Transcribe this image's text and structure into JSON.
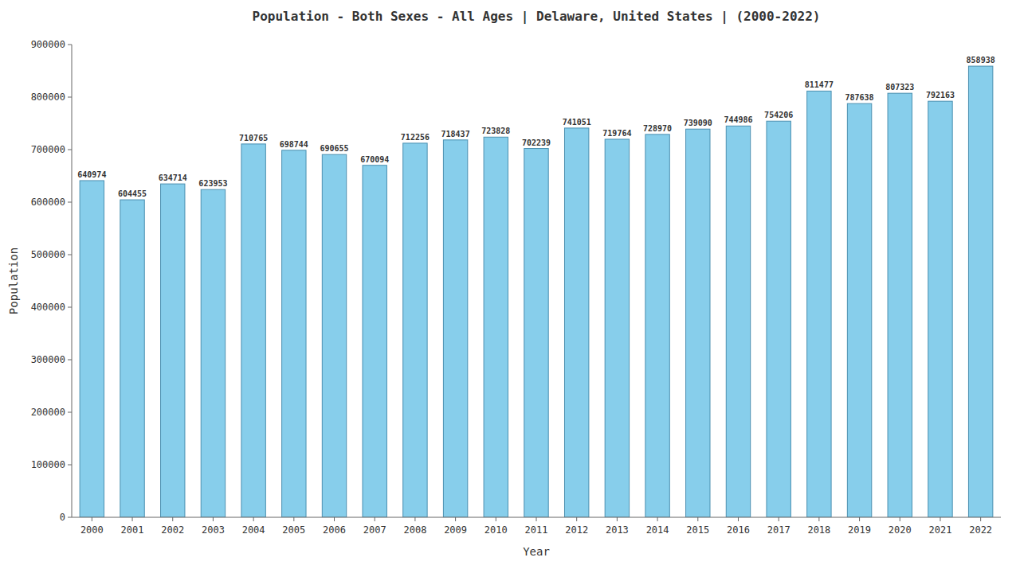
{
  "chart_data": {
    "type": "bar",
    "title": "Population - Both Sexes - All Ages | Delaware, United States |  (2000-2022)",
    "x_label": "Year",
    "y_label": "Population",
    "categories": [
      "2000",
      "2001",
      "2002",
      "2003",
      "2004",
      "2005",
      "2006",
      "2007",
      "2008",
      "2009",
      "2010",
      "2011",
      "2012",
      "2013",
      "2014",
      "2015",
      "2016",
      "2017",
      "2018",
      "2019",
      "2020",
      "2021",
      "2022"
    ],
    "values": [
      640974,
      604455,
      634714,
      623953,
      710765,
      698744,
      690655,
      670094,
      712256,
      718437,
      723828,
      702239,
      741051,
      719764,
      728970,
      739090,
      744986,
      754206,
      811477,
      787638,
      807323,
      792163,
      858938
    ],
    "color": "#87CEEB",
    "ylim": [
      0,
      900000
    ],
    "yticks": [
      0,
      100000,
      200000,
      300000,
      400000,
      500000,
      600000,
      700000,
      800000,
      900000
    ],
    "grid": false,
    "data_labels": true
  }
}
